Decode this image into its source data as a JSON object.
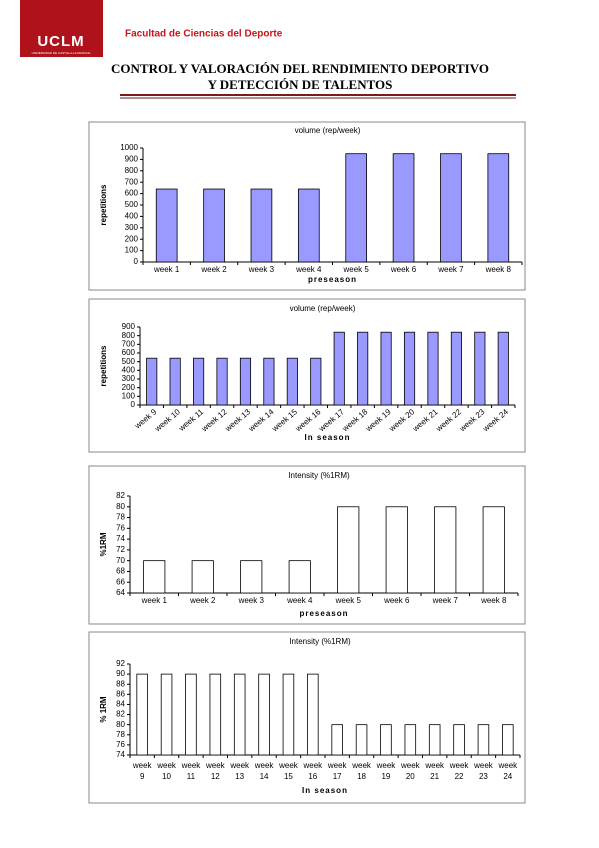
{
  "header": {
    "logo": "UCLM",
    "logo_subtitle": "UNIVERSIDAD DE CASTILLA-LA MANCHA",
    "faculty": "Facultad de Ciencias del Deporte",
    "title_lines": [
      "CONTROL Y VALORACIÓN DEL RENDIMIENTO DEPORTIVO",
      "Y DETECCIÓN DE TALENTOS"
    ]
  },
  "chart_data": [
    {
      "type": "bar",
      "title": "volume (rep/week)",
      "y_label": "repetitions",
      "x_label": "preseason",
      "color": "#9999ff",
      "categories": [
        "week 1",
        "week 2",
        "week 3",
        "week 4",
        "week 5",
        "week 6",
        "week 7",
        "week 8"
      ],
      "values": [
        640,
        640,
        640,
        640,
        950,
        950,
        950,
        950
      ],
      "ylim": [
        0,
        1000
      ],
      "yticks": [
        0,
        100,
        200,
        300,
        400,
        500,
        600,
        700,
        800,
        900,
        1000
      ]
    },
    {
      "type": "bar",
      "title": "volume (rep/week)",
      "y_label": "repetitions",
      "x_label": "In season",
      "color": "#9999ff",
      "categories": [
        "week 9",
        "week 10",
        "week 11",
        "week 12",
        "week 13",
        "week 14",
        "week 15",
        "week 16",
        "week 17",
        "week 18",
        "week 19",
        "week 20",
        "week 21",
        "week 22",
        "week 23",
        "week 24"
      ],
      "values": [
        540,
        540,
        540,
        540,
        540,
        540,
        540,
        540,
        840,
        840,
        840,
        840,
        840,
        840,
        840,
        840
      ],
      "ylim": [
        0,
        900
      ],
      "yticks": [
        0,
        100,
        200,
        300,
        400,
        500,
        600,
        700,
        800,
        900
      ]
    },
    {
      "type": "bar",
      "title": "Intensity (%1RM)",
      "y_label": "%1RM",
      "x_label": "preseason",
      "color": "#ffffff",
      "categories": [
        "week 1",
        "week 2",
        "week 3",
        "week 4",
        "week 5",
        "week 6",
        "week 7",
        "week 8"
      ],
      "values": [
        70,
        70,
        70,
        70,
        80,
        80,
        80,
        80
      ],
      "ylim": [
        64,
        82
      ],
      "yticks": [
        64,
        66,
        68,
        70,
        72,
        74,
        76,
        78,
        80,
        82
      ]
    },
    {
      "type": "bar",
      "title": "Intensity (%1RM)",
      "y_label": "% 1RM",
      "x_label": "In season",
      "color": "#ffffff",
      "categories": [
        "week 9",
        "week 10",
        "week 11",
        "week 12",
        "week 13",
        "week 14",
        "week 15",
        "week 16",
        "week 17",
        "week 18",
        "week 19",
        "week 20",
        "week 21",
        "week 22",
        "week 23",
        "week 24"
      ],
      "values": [
        90,
        90,
        90,
        90,
        90,
        90,
        90,
        90,
        80,
        80,
        80,
        80,
        80,
        80,
        80,
        80
      ],
      "ylim": [
        74,
        92
      ],
      "yticks": [
        74,
        76,
        78,
        80,
        82,
        84,
        86,
        88,
        90,
        92
      ]
    }
  ]
}
